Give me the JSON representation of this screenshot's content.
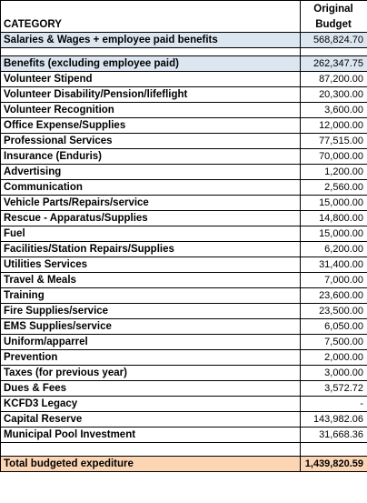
{
  "header": {
    "category_label": "CATEGORY",
    "budget_label_line1": "Original",
    "budget_label_line2": "Budget"
  },
  "rows": [
    {
      "category": "Salaries & Wages + employee paid benefits",
      "value": "568,824.70",
      "style": "blue"
    },
    {
      "category": "Benefits (excluding employee paid)",
      "value": "262,347.75",
      "style": "blue"
    },
    {
      "category": "Volunteer Stipend",
      "value": "87,200.00"
    },
    {
      "category": "Volunteer Disability/Pension/lifeflight",
      "value": "20,300.00"
    },
    {
      "category": "Volunteer Recognition",
      "value": "3,600.00"
    },
    {
      "category": "Office Expense/Supplies",
      "value": "12,000.00"
    },
    {
      "category": "Professional Services",
      "value": "77,515.00"
    },
    {
      "category": "Insurance (Enduris)",
      "value": "70,000.00"
    },
    {
      "category": "Advertising",
      "value": "1,200.00"
    },
    {
      "category": "Communication",
      "value": "2,560.00"
    },
    {
      "category": "Vehicle Parts/Repairs/service",
      "value": "15,000.00"
    },
    {
      "category": "Rescue - Apparatus/Supplies",
      "value": "14,800.00"
    },
    {
      "category": "Fuel",
      "value": "15,000.00"
    },
    {
      "category": "Facilities/Station Repairs/Supplies",
      "value": "6,200.00"
    },
    {
      "category": "Utilities Services",
      "value": "31,400.00"
    },
    {
      "category": "Travel & Meals",
      "value": "7,000.00"
    },
    {
      "category": "Training",
      "value": "23,600.00"
    },
    {
      "category": "Fire Supplies/service",
      "value": "23,500.00"
    },
    {
      "category": "EMS Supplies/service",
      "value": "6,050.00"
    },
    {
      "category": "Uniform/apparrel",
      "value": "7,500.00"
    },
    {
      "category": "Prevention",
      "value": "2,000.00"
    },
    {
      "category": "Taxes (for previous year)",
      "value": "3,000.00"
    },
    {
      "category": "Dues & Fees",
      "value": "3,572.72"
    },
    {
      "category": "KCFD3 Legacy",
      "value": "-"
    },
    {
      "category": "Capital Reserve",
      "value": "143,982.06"
    },
    {
      "category": "Municipal Pool Investment",
      "value": "31,668.36"
    }
  ],
  "total": {
    "label": "Total budgeted expediture",
    "value": "1,439,820.59"
  },
  "colors": {
    "header_blue": "#dce6f1",
    "total_peach": "#fcd5b4"
  }
}
